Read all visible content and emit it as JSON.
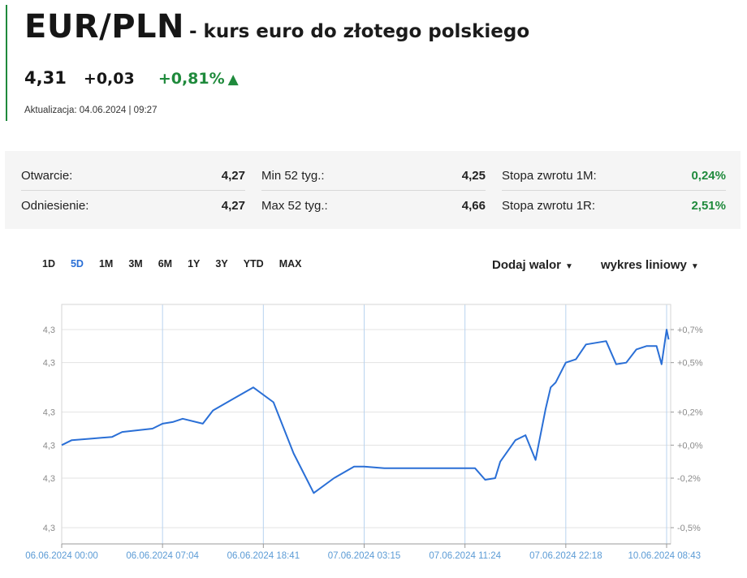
{
  "header": {
    "ticker": "EUR/PLN",
    "subtitle": "- kurs euro do złotego polskiego",
    "price": "4,31",
    "change": "+0,03",
    "change_pct": "+0,81%",
    "arrow": "▲",
    "updated": "Aktualizacja: 04.06.2024 | 09:27"
  },
  "stats": {
    "col1": [
      {
        "label": "Otwarcie:",
        "value": "4,27"
      },
      {
        "label": "Odniesienie:",
        "value": "4,27"
      }
    ],
    "col2": [
      {
        "label": "Min 52 tyg.:",
        "value": "4,25"
      },
      {
        "label": "Max 52 tyg.:",
        "value": "4,66"
      }
    ],
    "col3": [
      {
        "label": "Stopa zwrotu 1M:",
        "value": "0,24%"
      },
      {
        "label": "Stopa zwrotu 1R:",
        "value": "2,51%"
      }
    ]
  },
  "toolbar": {
    "ranges": [
      "1D",
      "5D",
      "1M",
      "3M",
      "6M",
      "1Y",
      "3Y",
      "YTD",
      "MAX"
    ],
    "active_range": "5D",
    "add_asset": "Dodaj walor",
    "chart_type": "wykres liniowy"
  },
  "colors": {
    "accent_green": "#1f8a3c",
    "line_blue": "#2a6fd6",
    "axis_label_blue": "#5b9bd5"
  },
  "chart_data": {
    "type": "line",
    "title": "",
    "x_tick_labels": [
      "06.06.2024 00:00",
      "06.06.2024 07:04",
      "06.06.2024 18:41",
      "07.06.2024 03:15",
      "07.06.2024 11:24",
      "07.06.2024 22:18",
      "10.06.2024 08:43"
    ],
    "y_left_tick_labels": [
      "4,3",
      "4,3",
      "4,3",
      "4,3",
      "4,3",
      "4,3"
    ],
    "y_right_tick_labels": [
      "+0,7%",
      "+0,5%",
      "+0,2%",
      "+0,0%",
      "-0,2%",
      "-0,5%"
    ],
    "y_right_values": [
      0.7,
      0.5,
      0.2,
      0.0,
      -0.2,
      -0.5
    ],
    "ylim_pct": [
      -0.55,
      0.85
    ],
    "grid": true,
    "series": [
      {
        "x_index": [
          0,
          0.1,
          0.3,
          0.5,
          0.6,
          0.9,
          1.0,
          1.1,
          1.2,
          1.4,
          1.5,
          1.7,
          1.9,
          2.1,
          2.3,
          2.5,
          2.7,
          2.9,
          3.0,
          3.2,
          3.4,
          3.6,
          3.8,
          3.9,
          4.1,
          4.2,
          4.3,
          4.35,
          4.5,
          4.6,
          4.7,
          4.8,
          4.85,
          4.9,
          5.0,
          5.1,
          5.2,
          5.4,
          5.5,
          5.6,
          5.7,
          5.8,
          5.9,
          5.95,
          6.0,
          6.02
        ],
        "values_pct": [
          0.0,
          0.03,
          0.04,
          0.05,
          0.08,
          0.1,
          0.13,
          0.14,
          0.16,
          0.13,
          0.21,
          0.28,
          0.35,
          0.26,
          -0.05,
          -0.29,
          -0.2,
          -0.13,
          -0.13,
          -0.14,
          -0.14,
          -0.14,
          -0.14,
          -0.14,
          -0.14,
          -0.21,
          -0.2,
          -0.1,
          0.03,
          0.06,
          -0.09,
          0.22,
          0.35,
          0.38,
          0.5,
          0.52,
          0.61,
          0.63,
          0.49,
          0.5,
          0.58,
          0.6,
          0.6,
          0.49,
          0.7,
          0.64
        ]
      }
    ]
  }
}
